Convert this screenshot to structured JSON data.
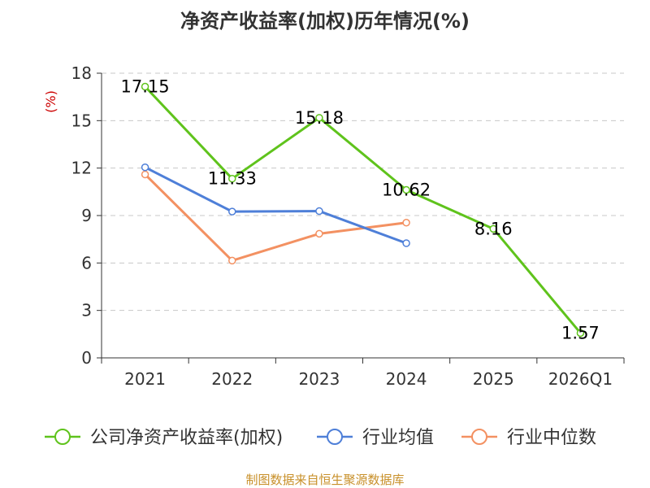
{
  "chart_data": {
    "type": "line",
    "title": "净资产收益率(加权)历年情况(%)",
    "ylabel": "(%)",
    "xlabel": "",
    "ylim": [
      0,
      18
    ],
    "yticks": [
      0,
      3,
      6,
      9,
      12,
      15,
      18
    ],
    "categories": [
      "2021",
      "2022",
      "2023",
      "2024",
      "2025",
      "2026Q1"
    ],
    "grid": true,
    "legend_position": "bottom",
    "series": [
      {
        "name": "公司净资产收益率(加权)",
        "color": "#5fc31c",
        "values": [
          17.15,
          11.33,
          15.18,
          10.62,
          8.16,
          1.57
        ],
        "labels": [
          "17.15",
          "11.33",
          "15.18",
          "10.62",
          "8.16",
          "1.57"
        ]
      },
      {
        "name": "行业均值",
        "color": "#4e7fd8",
        "values": [
          12.05,
          9.25,
          9.28,
          7.25,
          null,
          null
        ]
      },
      {
        "name": "行业中位数",
        "color": "#f39162",
        "values": [
          11.6,
          6.15,
          7.85,
          8.55,
          null,
          null
        ]
      }
    ],
    "source": "制图数据来自恒生聚源数据库"
  }
}
